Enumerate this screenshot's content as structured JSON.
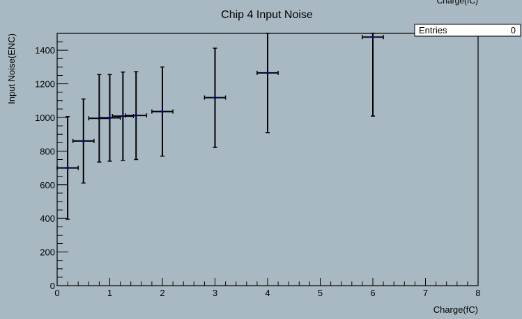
{
  "chart_data": {
    "type": "scatter",
    "title": "Chip 4 Input Noise",
    "xlabel": "Charge(fC)",
    "ylabel": "Input Noise(ENC)",
    "top_clipped_label": "Charge(fC)",
    "xlim": [
      0,
      8
    ],
    "ylim": [
      0,
      1500
    ],
    "x_ticks": [
      0,
      1,
      2,
      3,
      4,
      5,
      6,
      7,
      8
    ],
    "y_ticks": [
      0,
      200,
      400,
      600,
      800,
      1000,
      1200,
      1400
    ],
    "grid": false,
    "legend": "none",
    "stats_box": {
      "label": "Entries",
      "value": "0",
      "position": "top-right"
    },
    "marker_color": "#0000cc",
    "errorbar_color": "#000000",
    "background_color": "#a9b9c3",
    "points": [
      {
        "x": 0.2,
        "y": 700,
        "xerr": 0.2,
        "ylow": 395,
        "yhigh": 1005
      },
      {
        "x": 0.5,
        "y": 860,
        "xerr": 0.2,
        "ylow": 610,
        "yhigh": 1110
      },
      {
        "x": 0.8,
        "y": 995,
        "xerr": 0.2,
        "ylow": 735,
        "yhigh": 1255
      },
      {
        "x": 1.0,
        "y": 998,
        "xerr": 0.2,
        "ylow": 740,
        "yhigh": 1255
      },
      {
        "x": 1.25,
        "y": 1008,
        "xerr": 0.2,
        "ylow": 745,
        "yhigh": 1270
      },
      {
        "x": 1.5,
        "y": 1012,
        "xerr": 0.2,
        "ylow": 750,
        "yhigh": 1272
      },
      {
        "x": 2.0,
        "y": 1035,
        "xerr": 0.2,
        "ylow": 770,
        "yhigh": 1300
      },
      {
        "x": 3.0,
        "y": 1118,
        "xerr": 0.2,
        "ylow": 822,
        "yhigh": 1412
      },
      {
        "x": 4.0,
        "y": 1265,
        "xerr": 0.2,
        "ylow": 910,
        "yhigh": 1500
      },
      {
        "x": 6.0,
        "y": 1478,
        "xerr": 0.2,
        "ylow": 1008,
        "yhigh": 1500
      }
    ]
  }
}
